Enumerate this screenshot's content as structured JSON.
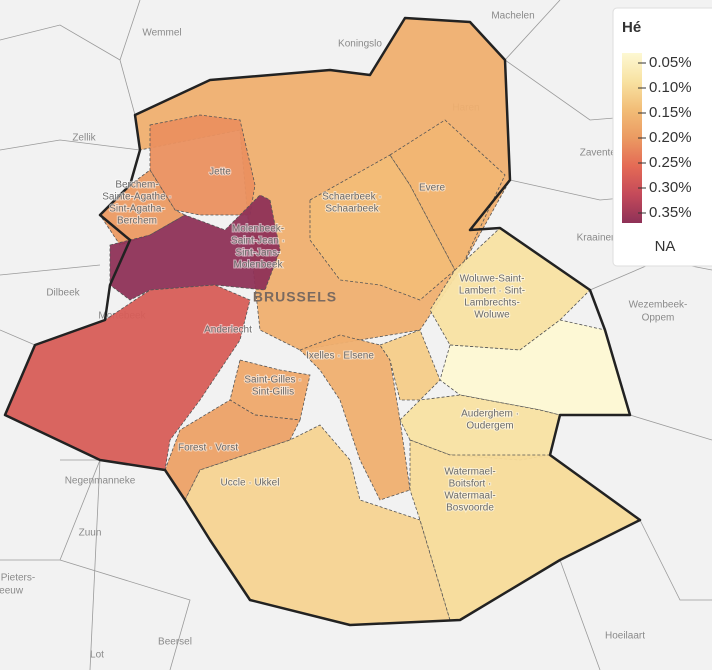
{
  "legend": {
    "title": "Hé",
    "ticks": [
      {
        "value": 0.05,
        "label": "0.05%"
      },
      {
        "value": 0.1,
        "label": "0.10%"
      },
      {
        "value": 0.15,
        "label": "0.15%"
      },
      {
        "value": 0.2,
        "label": "0.20%"
      },
      {
        "value": 0.25,
        "label": "0.25%"
      },
      {
        "value": 0.3,
        "label": "0.30%"
      },
      {
        "value": 0.35,
        "label": "0.35%"
      }
    ],
    "colors": [
      "#fdf8d3",
      "#f8e2a2",
      "#f2bd77",
      "#eb9a62",
      "#e46a55",
      "#c44a5a",
      "#8e3157"
    ],
    "na_label": "NA"
  },
  "regions": [
    {
      "label": [
        "BRUSSELS"
      ],
      "value": 0.17
    },
    {
      "label": [
        "Jette"
      ],
      "value": 0.21
    },
    {
      "label": [
        "Berchem-",
        "Sainte-Agathe ·",
        "Sint-Agatha-",
        "Berchem"
      ],
      "value": 0.2
    },
    {
      "label": [
        "Molenbeek-",
        "Saint-Jean ·",
        "Sint-Jans-",
        "Molenbeek"
      ],
      "value": 0.36
    },
    {
      "label": [
        "Anderlecht"
      ],
      "value": 0.27
    },
    {
      "label": [
        "Schaerbeek ·",
        "Schaarbeek"
      ],
      "value": 0.15
    },
    {
      "label": [
        "Evere"
      ],
      "value": 0.16
    },
    {
      "label": [
        "Woluwe-Saint-",
        "Lambert · Sint-",
        "Lambrechts-",
        "Woluwe"
      ],
      "value": 0.1
    },
    {
      "value": 0.05
    },
    {
      "label": [
        "Ixelles · Elsene"
      ],
      "value": 0.17
    },
    {
      "value": 0.13
    },
    {
      "label": [
        "Saint-Gilles ·",
        "Sint-Gillis"
      ],
      "value": 0.18
    },
    {
      "label": [
        "Forest · Vorst"
      ],
      "value": 0.19
    },
    {
      "label": [
        "Auderghem ·",
        "Oudergem"
      ],
      "value": 0.1
    },
    {
      "label": [
        "Uccle · Ukkel"
      ],
      "value": 0.12
    },
    {
      "label": [
        "Watermael-",
        "Boitsfort ·",
        "Watermaal-",
        "Bosvoorde"
      ],
      "value": 0.11
    }
  ],
  "places": [
    "Machelen",
    "Wemmel",
    "Koningslo",
    "Zellik",
    "Dilbeek",
    "Mortebeek",
    "Zaventem",
    "Kraainem",
    "Wezembeek-",
    "Oppem",
    "Haren",
    "Negenmanneke",
    "Zuun",
    "Pieters-",
    "leeuw",
    "Beersel",
    "Lot",
    "Hoeilaart"
  ]
}
